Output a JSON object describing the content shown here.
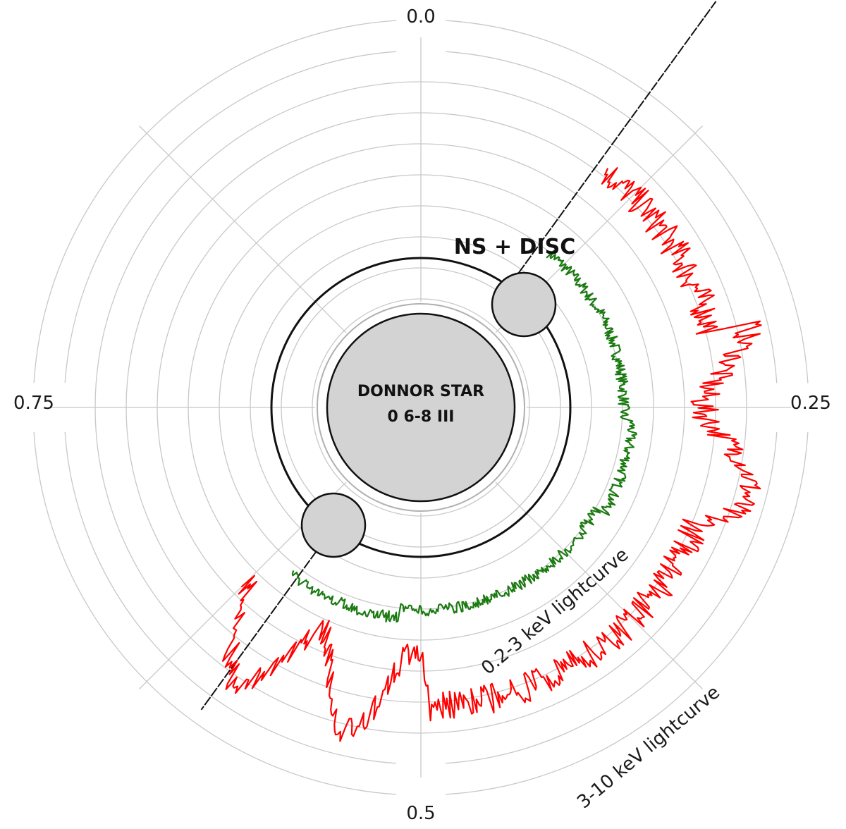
{
  "diagram": {
    "phase_labels": {
      "top": "0.0",
      "right": "0.25",
      "bottom": "0.5",
      "left": "0.75"
    },
    "ns_disc_label": "NS + DISC",
    "donor_star_label_line1": "DONNOR STAR",
    "donor_star_label_line2": "0 6-8 III",
    "soft_curve_label": "0.2-3 keV lightcurve",
    "hard_curve_label": "3-10 keV lightcurve",
    "colors": {
      "soft_curve": "#1a7a10",
      "hard_curve": "#ff0000",
      "grid": "#c8c8c8",
      "star_fill": "#d3d3d3"
    }
  }
}
